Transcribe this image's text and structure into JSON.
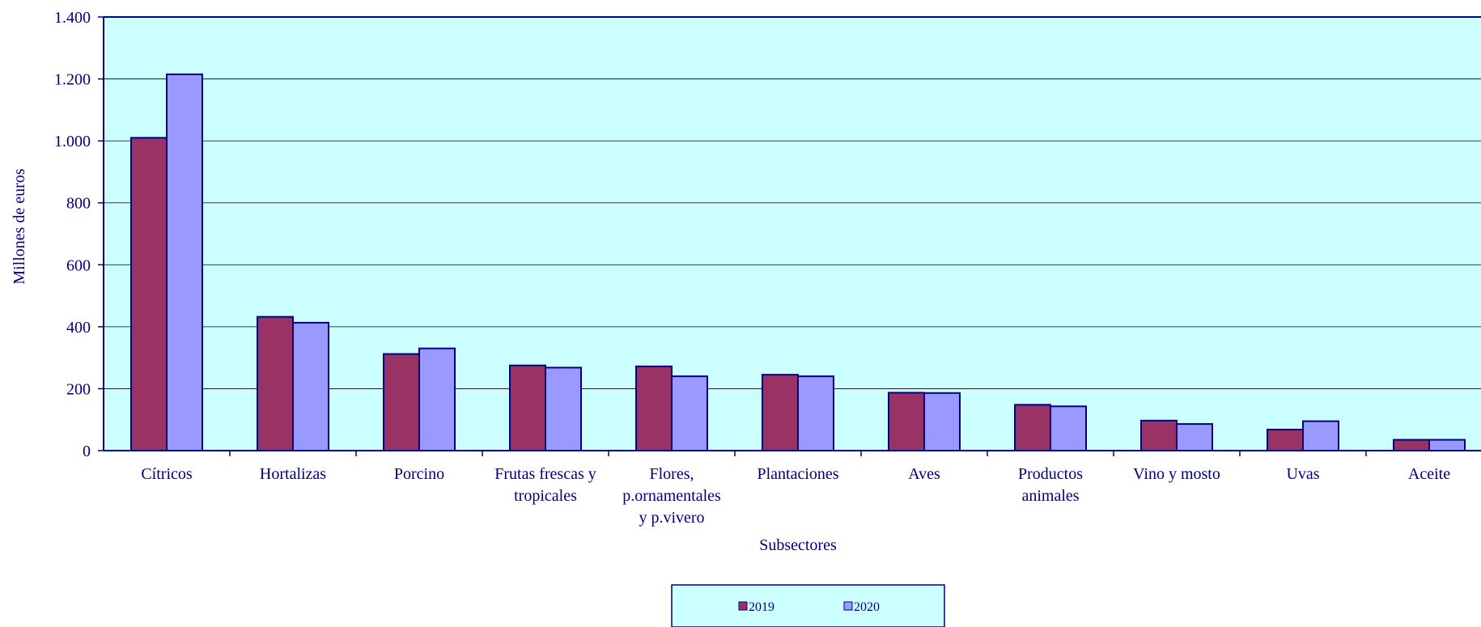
{
  "chart_data": {
    "type": "bar",
    "title": "",
    "xlabel": "Subsectores",
    "ylabel": "Millones de euros",
    "ylim": [
      0,
      1400
    ],
    "yticks": [
      0,
      200,
      400,
      600,
      800,
      1000,
      1200,
      1400
    ],
    "ytick_labels": [
      "0",
      "200",
      "400",
      "600",
      "800",
      "1.000",
      "1.200",
      "1.400"
    ],
    "grid": "horizontal",
    "legend_position": "bottom",
    "categories": [
      [
        "Cítricos"
      ],
      [
        "Hortalizas"
      ],
      [
        "Porcino"
      ],
      [
        "Frutas frescas y",
        "tropicales"
      ],
      [
        "Flores,",
        "p.ornamentales",
        "y p.vivero"
      ],
      [
        "Plantaciones"
      ],
      [
        "Aves"
      ],
      [
        "Productos",
        "animales"
      ],
      [
        "Vino y mosto"
      ],
      [
        "Uvas"
      ],
      [
        "Aceite"
      ]
    ],
    "series": [
      {
        "name": "2019",
        "color": "#993366",
        "values": [
          1010,
          432,
          312,
          275,
          272,
          245,
          187,
          148,
          97,
          68,
          35
        ]
      },
      {
        "name": "2020",
        "color": "#9999ff",
        "values": [
          1215,
          413,
          330,
          268,
          240,
          240,
          186,
          143,
          86,
          95,
          35
        ]
      }
    ],
    "colors": {
      "plot_background": "#ccffff",
      "axis": "#000080",
      "text": "#000080",
      "bar_edge": "#000080"
    }
  }
}
